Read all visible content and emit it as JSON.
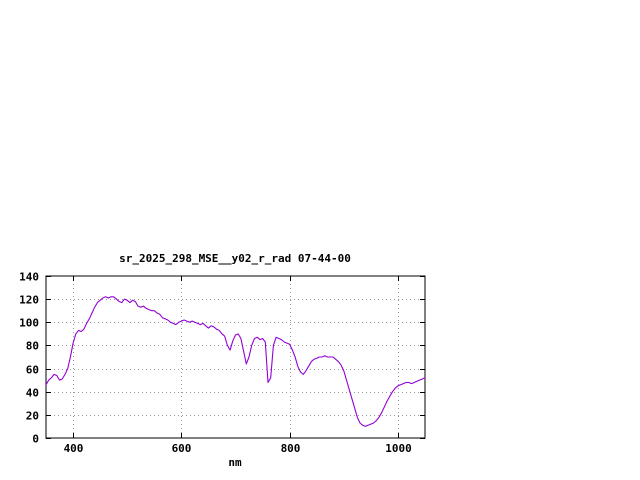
{
  "chart_data": {
    "type": "line",
    "title": "sr_2025_298_MSE__y02_r_rad 07-44-00",
    "xlabel": "nm",
    "ylabel": "",
    "xlim": [
      350,
      1050
    ],
    "ylim": [
      0,
      140
    ],
    "xticks": [
      400,
      600,
      800,
      1000
    ],
    "yticks": [
      0,
      20,
      40,
      60,
      80,
      100,
      120,
      140
    ],
    "grid": true,
    "legend": "none",
    "line_color": "#9400d3",
    "background_color": "#ffffff",
    "series": [
      {
        "name": "sr_2025_298_MSE__y02_r_rad",
        "x": [
          350,
          355,
          360,
          365,
          370,
          375,
          380,
          385,
          390,
          395,
          400,
          405,
          410,
          415,
          420,
          425,
          430,
          435,
          440,
          445,
          450,
          455,
          460,
          465,
          470,
          475,
          480,
          485,
          490,
          495,
          500,
          505,
          510,
          515,
          520,
          525,
          530,
          535,
          540,
          545,
          550,
          555,
          560,
          565,
          570,
          575,
          580,
          585,
          590,
          595,
          600,
          605,
          610,
          615,
          620,
          625,
          630,
          635,
          640,
          645,
          650,
          655,
          660,
          665,
          670,
          675,
          680,
          685,
          690,
          695,
          700,
          705,
          710,
          715,
          720,
          725,
          730,
          735,
          740,
          745,
          750,
          755,
          760,
          765,
          770,
          775,
          780,
          785,
          790,
          795,
          800,
          805,
          810,
          815,
          820,
          825,
          830,
          835,
          840,
          845,
          850,
          855,
          860,
          865,
          870,
          875,
          880,
          885,
          890,
          895,
          900,
          905,
          910,
          915,
          920,
          925,
          930,
          935,
          940,
          945,
          950,
          955,
          960,
          965,
          970,
          975,
          980,
          985,
          990,
          995,
          1000,
          1005,
          1010,
          1015,
          1020,
          1025,
          1030,
          1035,
          1040,
          1045,
          1050
        ],
        "y": [
          46,
          50,
          52,
          55,
          54,
          50,
          51,
          55,
          60,
          70,
          82,
          90,
          93,
          92,
          94,
          99,
          103,
          108,
          113,
          117,
          119,
          121,
          122,
          121,
          122,
          122,
          120,
          118,
          117,
          120,
          119,
          117,
          119,
          118,
          114,
          113,
          114,
          112,
          111,
          110,
          110,
          108,
          107,
          104,
          103,
          102,
          100,
          99,
          98,
          100,
          101,
          102,
          101,
          100,
          101,
          100,
          99,
          98,
          99,
          97,
          95,
          97,
          96,
          94,
          93,
          90,
          88,
          80,
          76,
          84,
          89,
          90,
          86,
          75,
          64,
          70,
          80,
          86,
          87,
          85,
          86,
          83,
          48,
          52,
          80,
          87,
          86,
          85,
          83,
          82,
          81,
          76,
          70,
          62,
          57,
          55,
          58,
          62,
          66,
          68,
          69,
          70,
          70,
          71,
          70,
          70,
          70,
          68,
          66,
          63,
          58,
          50,
          42,
          34,
          26,
          18,
          13,
          11,
          10,
          11,
          12,
          13,
          15,
          18,
          22,
          27,
          32,
          36,
          40,
          43,
          45,
          46,
          47,
          48,
          48,
          47,
          48,
          49,
          50,
          51,
          52
        ]
      }
    ]
  }
}
